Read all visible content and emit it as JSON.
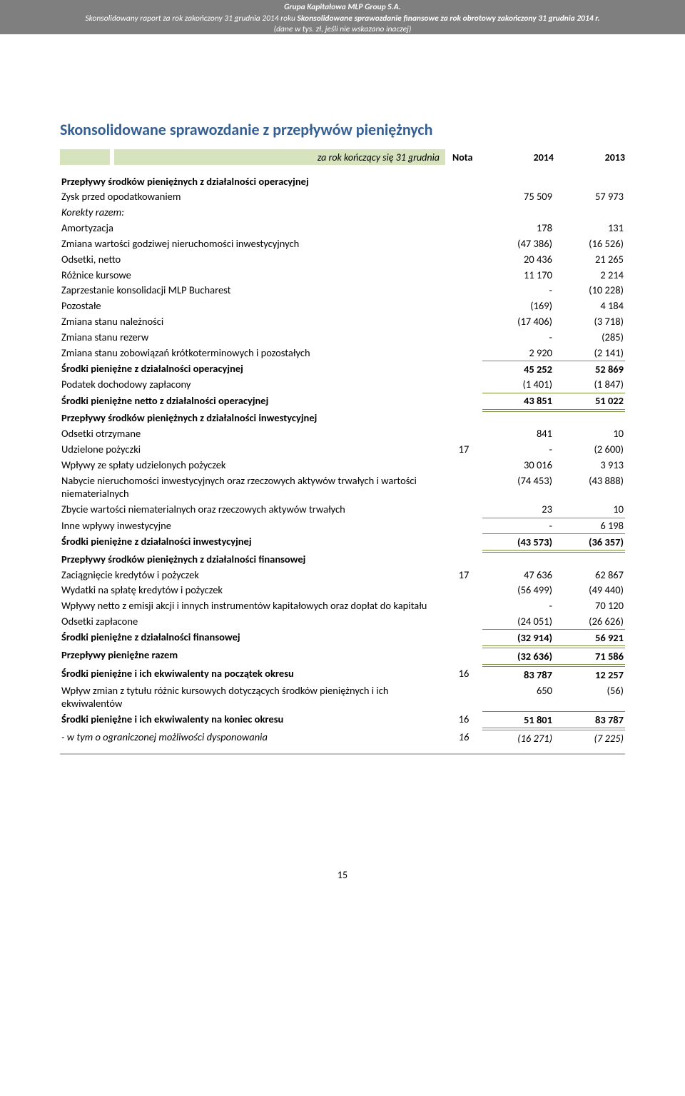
{
  "header": {
    "line1": "Grupa Kapitałowa MLP Group S.A.",
    "line2_prefix": "Skonsolidowany raport za rok zakończony 31 grudnia 2014 roku ",
    "line2_bold": "Skonsolidowane sprawozdanie finansowe za rok obrotowy zakończony 31 grudnia 2014 r.",
    "line3": "(dane w tys. zł, jeśli nie wskazano inaczej)"
  },
  "title": "Skonsolidowane sprawozdanie z przepływów pieniężnych",
  "period": {
    "label": "za rok kończący się 31 grudnia",
    "nota": "Nota",
    "y2014": "2014",
    "y2013": "2013"
  },
  "sec1_hdr": "Przepływy środków pieniężnych z działalności operacyjnej",
  "r1": {
    "l": "Zysk przed opodatkowaniem",
    "a": "75 509",
    "b": "57 973"
  },
  "r2": {
    "l": "Korekty razem:"
  },
  "r3": {
    "l": "Amortyzacja",
    "a": "178",
    "b": "131"
  },
  "r4": {
    "l": "Zmiana wartości godziwej nieruchomości inwestycyjnych",
    "a": "(47 386)",
    "b": "(16 526)"
  },
  "r5": {
    "l": "Odsetki, netto",
    "a": "20 436",
    "b": "21 265"
  },
  "r6": {
    "l": "Różnice kursowe",
    "a": "11 170",
    "b": "2 214"
  },
  "r7": {
    "l": "Zaprzestanie konsolidacji MLP Bucharest",
    "a": "-",
    "b": "(10 228)"
  },
  "r8": {
    "l": "Pozostałe",
    "a": "(169)",
    "b": "4 184"
  },
  "r9": {
    "l": "Zmiana stanu należności",
    "a": "(17 406)",
    "b": "(3 718)"
  },
  "r10": {
    "l": "Zmiana stanu rezerw",
    "a": "-",
    "b": "(285)"
  },
  "r11": {
    "l": "Zmiana stanu zobowiązań krótkoterminowych i pozostałych",
    "a": "2 920",
    "b": "(2 141)"
  },
  "r12": {
    "l": "Środki pieniężne z działalności operacyjnej",
    "a": "45 252",
    "b": "52 869"
  },
  "r13": {
    "l": "Podatek dochodowy zapłacony",
    "a": "(1 401)",
    "b": "(1 847)"
  },
  "r14": {
    "l": "Środki pieniężne netto z działalności operacyjnej",
    "a": "43 851",
    "b": "51 022"
  },
  "sec2_hdr": "Przepływy środków pieniężnych z działalności inwestycyjnej",
  "r15": {
    "l": "Odsetki otrzymane",
    "a": "841",
    "b": "10"
  },
  "r16": {
    "l": "Udzielone pożyczki",
    "n": "17",
    "a": "-",
    "b": "(2 600)"
  },
  "r17": {
    "l": "Wpływy ze spłaty udzielonych pożyczek",
    "a": "30 016",
    "b": "3 913"
  },
  "r18": {
    "l": "Nabycie nieruchomości inwestycyjnych oraz rzeczowych aktywów trwałych i wartości niematerialnych",
    "a": "(74 453)",
    "b": "(43 888)"
  },
  "r19": {
    "l": "Zbycie wartości niematerialnych oraz rzeczowych aktywów trwałych",
    "a": "23",
    "b": "10"
  },
  "r20": {
    "l": "Inne wpływy inwestycyjne",
    "a": "-",
    "b": "6 198"
  },
  "r21": {
    "l": "Środki pieniężne z działalności inwestycyjnej",
    "a": "(43 573)",
    "b": "(36 357)"
  },
  "sec3_hdr": "Przepływy środków pieniężnych z działalności finansowej",
  "r22": {
    "l": "Zaciągnięcie kredytów i pożyczek",
    "n": "17",
    "a": "47 636",
    "b": "62 867"
  },
  "r23": {
    "l": "Wydatki na spłatę kredytów i pożyczek",
    "a": "(56 499)",
    "b": "(49 440)"
  },
  "r24": {
    "l": "Wpływy netto z emisji akcji i innych instrumentów kapitałowych oraz dopłat do kapitału",
    "a": "-",
    "b": "70 120"
  },
  "r25": {
    "l": "Odsetki zapłacone",
    "a": "(24 051)",
    "b": "(26 626)"
  },
  "r26": {
    "l": "Środki pieniężne z działalności finansowej",
    "a": "(32 914)",
    "b": "56 921"
  },
  "r27": {
    "l": "Przepływy pieniężne razem",
    "a": "(32 636)",
    "b": "71 586"
  },
  "r28": {
    "l": "Środki pieniężne i ich ekwiwalenty na początek okresu",
    "n": "16",
    "a": "83 787",
    "b": "12 257"
  },
  "r29": {
    "l": "Wpływ zmian z tytułu różnic kursowych dotyczących środków pieniężnych i ich ekwiwalentów",
    "a": "650",
    "b": "(56)"
  },
  "r30": {
    "l": "Środki pieniężne i ich ekwiwalenty na koniec okresu",
    "n": "16",
    "a": "51 801",
    "b": "83 787"
  },
  "r31": {
    "l": "- w tym o ograniczonej możliwości dysponowania",
    "n": "16",
    "a": "(16 271)",
    "b": "(7 225)"
  },
  "page_number": "15",
  "colors": {
    "accent": "#365f91",
    "olive": "#76923c",
    "grayband": "#d6e3bc",
    "header_bg": "#7f7f7f"
  }
}
